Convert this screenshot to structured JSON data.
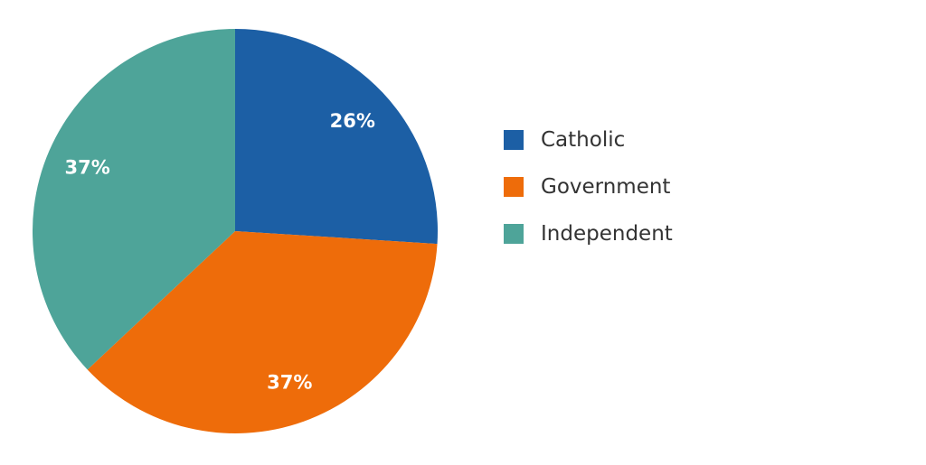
{
  "chart_data": {
    "type": "pie",
    "categories": [
      "Catholic",
      "Government",
      "Independent"
    ],
    "values": [
      26,
      37,
      37
    ],
    "labels": [
      "26%",
      "37%",
      "37%"
    ],
    "colors": [
      "#1c5fa5",
      "#ee6c0a",
      "#4ea499"
    ],
    "legend_position": "right",
    "start_angle": "12 o'clock",
    "direction": "clockwise"
  }
}
